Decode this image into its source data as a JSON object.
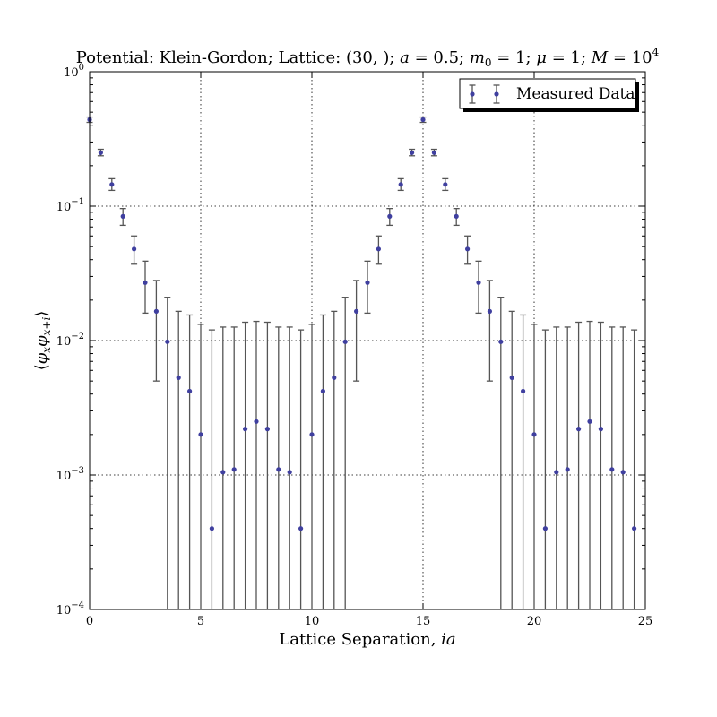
{
  "chart_data": {
    "type": "scatter",
    "title": "Potential: Klein-Gordon; Lattice: (30, ); a = 0.5; m0 = 1; μ = 1; M = 10^4",
    "title_parts": {
      "prefix": "Potential: Klein-Gordon; Lattice: (30, ); ",
      "a_var": "a",
      "a_val": " = 0.5; ",
      "m_var": "m",
      "m_sub": "0",
      "m_val": " = 1; ",
      "mu_var": "μ",
      "mu_val": " = 1; ",
      "M_var": "M",
      "M_val": " = 10",
      "M_exp": "4"
    },
    "xlabel": "Lattice Separation, ia",
    "xlabel_parts": {
      "text": "Lattice Separation, ",
      "var": "ia"
    },
    "ylabel": "⟨φxφx+i⟩",
    "ylabel_parts": {
      "open": "⟨",
      "phi1": "φ",
      "sub1": "x",
      "phi2": "φ",
      "sub2": "x+i",
      "close": "⟩"
    },
    "xlim": [
      0,
      25
    ],
    "ylim": [
      0.0001,
      1
    ],
    "yscale": "log",
    "grid": true,
    "legend_placement": "top-right",
    "x_ticks": [
      "0",
      "5",
      "10",
      "15",
      "20",
      "25"
    ],
    "y_ticks": [
      {
        "value": 0.0001,
        "base": "10",
        "exp": "−4"
      },
      {
        "value": 0.001,
        "base": "10",
        "exp": "−3"
      },
      {
        "value": 0.01,
        "base": "10",
        "exp": "−2"
      },
      {
        "value": 0.1,
        "base": "10",
        "exp": "−1"
      },
      {
        "value": 1,
        "base": "10",
        "exp": "0"
      }
    ],
    "series": [
      {
        "name": "Measured Data",
        "color": "#3f3f9f",
        "errorbar_color": "#555555",
        "x": [
          0.0,
          0.5,
          1.0,
          1.5,
          2.0,
          2.5,
          3.0,
          3.5,
          4.0,
          4.5,
          5.0,
          5.5,
          6.0,
          6.5,
          7.0,
          7.5,
          8.0,
          8.5,
          9.0,
          9.5,
          10.0,
          10.5,
          11.0,
          11.5,
          12.0,
          12.5,
          13.0,
          13.5,
          14.0,
          14.5,
          15.0,
          15.5,
          16.0,
          16.5,
          17.0,
          17.5,
          18.0,
          18.5,
          19.0,
          19.5,
          20.0,
          20.5,
          21.0,
          21.5,
          22.0,
          22.5,
          23.0,
          23.5,
          24.0,
          24.5
        ],
        "y": [
          0.44,
          0.25,
          0.145,
          0.084,
          0.048,
          0.027,
          0.0165,
          0.0098,
          0.0053,
          0.0042,
          0.002,
          0.0004,
          0.00105,
          0.0011,
          0.0022,
          0.0025,
          0.0022,
          0.0011,
          0.00105,
          0.0004,
          0.002,
          0.0042,
          0.0053,
          0.0098,
          0.0165,
          0.027,
          0.048,
          0.084,
          0.145,
          0.25,
          0.44,
          0.25,
          0.145,
          0.084,
          0.048,
          0.027,
          0.0165,
          0.0098,
          0.0053,
          0.0042,
          0.002,
          0.0004,
          0.00105,
          0.0011,
          0.0022,
          0.0025,
          0.0022,
          0.0011,
          0.00105,
          0.0004
        ],
        "y_lower": [
          0.42,
          0.237,
          0.131,
          0.072,
          0.037,
          0.016,
          0.005,
          0.0001,
          0.0001,
          0.0001,
          0.0001,
          0.0001,
          0.0001,
          0.0001,
          0.0001,
          0.0001,
          0.0001,
          0.0001,
          0.0001,
          0.0001,
          0.0001,
          0.0001,
          0.0001,
          0.0001,
          0.005,
          0.016,
          0.037,
          0.072,
          0.131,
          0.237,
          0.42,
          0.237,
          0.131,
          0.072,
          0.037,
          0.016,
          0.005,
          0.0001,
          0.0001,
          0.0001,
          0.0001,
          0.0001,
          0.0001,
          0.0001,
          0.0001,
          0.0001,
          0.0001,
          0.0001,
          0.0001,
          0.0001
        ],
        "y_upper": [
          0.46,
          0.265,
          0.16,
          0.096,
          0.06,
          0.039,
          0.028,
          0.021,
          0.0165,
          0.0155,
          0.0132,
          0.012,
          0.0126,
          0.0126,
          0.0137,
          0.0139,
          0.0137,
          0.0126,
          0.0126,
          0.012,
          0.0132,
          0.0155,
          0.0165,
          0.021,
          0.028,
          0.039,
          0.06,
          0.096,
          0.16,
          0.265,
          0.46,
          0.265,
          0.16,
          0.096,
          0.06,
          0.039,
          0.028,
          0.021,
          0.0165,
          0.0155,
          0.0132,
          0.012,
          0.0126,
          0.0126,
          0.0137,
          0.0139,
          0.0137,
          0.0126,
          0.0126,
          0.012
        ]
      }
    ]
  }
}
